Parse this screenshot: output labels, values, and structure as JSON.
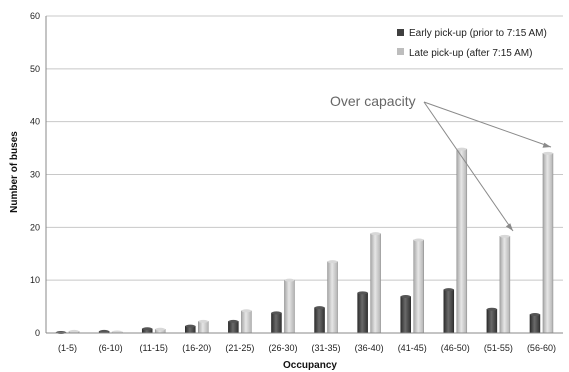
{
  "chart_data": {
    "type": "bar",
    "categories": [
      "(1-5)",
      "(6-10)",
      "(11-15)",
      "(16-20)",
      "(21-25)",
      "(26-30)",
      "(31-35)",
      "(36-40)",
      "(41-45)",
      "(46-50)",
      "(51-55)",
      "(56-60)"
    ],
    "series": [
      {
        "name": "Early pick-up (prior to 7:15 AM)",
        "values": [
          0.1,
          0.3,
          0.8,
          1.3,
          2.2,
          3.8,
          4.8,
          7.6,
          6.9,
          8.2,
          4.5,
          3.5
        ],
        "color": "#3f3f3f"
      },
      {
        "name": "Late pick-up (after 7:15 AM)",
        "values": [
          0.3,
          0.2,
          0.7,
          2.2,
          4.2,
          10.0,
          13.5,
          18.8,
          17.6,
          34.8,
          18.3,
          34.0
        ],
        "color": "#bdbdbd"
      }
    ],
    "xlabel": "Occupancy",
    "ylabel": "Number of buses",
    "ylim": [
      0,
      60
    ],
    "yticks": [
      0,
      10,
      20,
      30,
      40,
      50,
      60
    ],
    "grid": true,
    "legend": "top-right",
    "annotation": {
      "text": "Over capacity",
      "points_to": [
        "(51-55)",
        "(56-60)"
      ]
    }
  }
}
